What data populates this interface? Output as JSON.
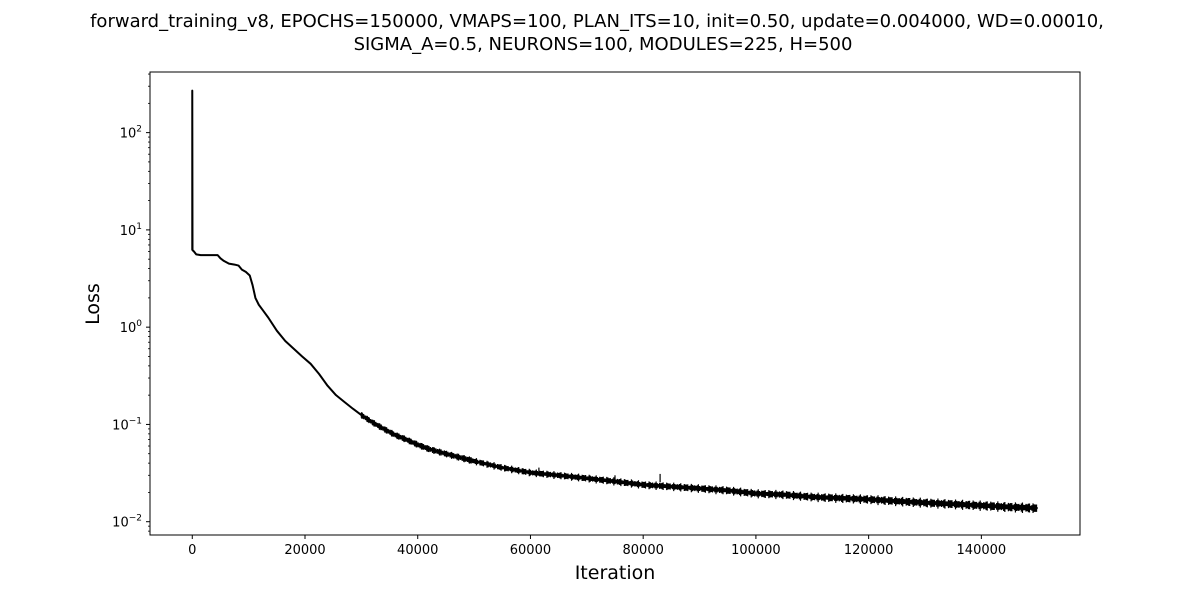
{
  "chart_data": {
    "type": "line",
    "title_lines": [
      "forward_training_v8, EPOCHS=150000, VMAPS=100, PLAN_ITS=10, init=0.50, update=0.004000, WD=0.00010,",
      "SIGMA_A=0.5, NEURONS=100, MODULES=225, H=500"
    ],
    "xlabel": "Iteration",
    "ylabel": "Loss",
    "yscale": "log",
    "xlim": [
      -7500,
      157500
    ],
    "ylim": [
      0.0073,
      420
    ],
    "grid": false,
    "legend": "none",
    "line_color": "#000000",
    "x_ticks": [
      {
        "value": 0,
        "label": "0"
      },
      {
        "value": 20000,
        "label": "20000"
      },
      {
        "value": 40000,
        "label": "40000"
      },
      {
        "value": 60000,
        "label": "60000"
      },
      {
        "value": 80000,
        "label": "80000"
      },
      {
        "value": 100000,
        "label": "100000"
      },
      {
        "value": 120000,
        "label": "120000"
      },
      {
        "value": 140000,
        "label": "140000"
      }
    ],
    "y_ticks": [
      {
        "value": 0.01,
        "base": "10",
        "exp": "−2"
      },
      {
        "value": 0.1,
        "base": "10",
        "exp": "−1"
      },
      {
        "value": 1,
        "base": "10",
        "exp": "0"
      },
      {
        "value": 10,
        "base": "10",
        "exp": "1"
      },
      {
        "value": 100,
        "base": "10",
        "exp": "2"
      }
    ],
    "series": [
      {
        "x": [
          0,
          0,
          40,
          300,
          700,
          1500,
          3000,
          4500,
          5000,
          5600,
          6500,
          7500,
          8200,
          8800,
          9500,
          10200,
          10700,
          11200,
          11800,
          12500,
          13500,
          15000,
          16500,
          18000,
          19500,
          21000,
          22500,
          24000,
          25500,
          27000,
          28500,
          30000,
          32000,
          34000,
          36000,
          38000,
          40000,
          42000,
          45000,
          48000,
          50000,
          55000,
          60000,
          65000,
          70000,
          75000,
          80000,
          85000,
          90000,
          95000,
          100000,
          105000,
          110000,
          115000,
          120000,
          125000,
          130000,
          135000,
          140000,
          145000,
          150000
        ],
        "y": [
          6.2,
          270,
          6.2,
          6.0,
          5.6,
          5.5,
          5.5,
          5.5,
          5.1,
          4.8,
          4.5,
          4.4,
          4.3,
          3.9,
          3.7,
          3.4,
          2.7,
          2.0,
          1.7,
          1.5,
          1.25,
          0.92,
          0.72,
          0.6,
          0.5,
          0.42,
          0.33,
          0.25,
          0.2,
          0.17,
          0.145,
          0.125,
          0.105,
          0.09,
          0.078,
          0.07,
          0.062,
          0.056,
          0.05,
          0.045,
          0.042,
          0.036,
          0.032,
          0.03,
          0.028,
          0.026,
          0.024,
          0.023,
          0.022,
          0.021,
          0.0195,
          0.019,
          0.018,
          0.0175,
          0.017,
          0.0163,
          0.0157,
          0.0152,
          0.0147,
          0.0142,
          0.0138
        ]
      }
    ]
  }
}
